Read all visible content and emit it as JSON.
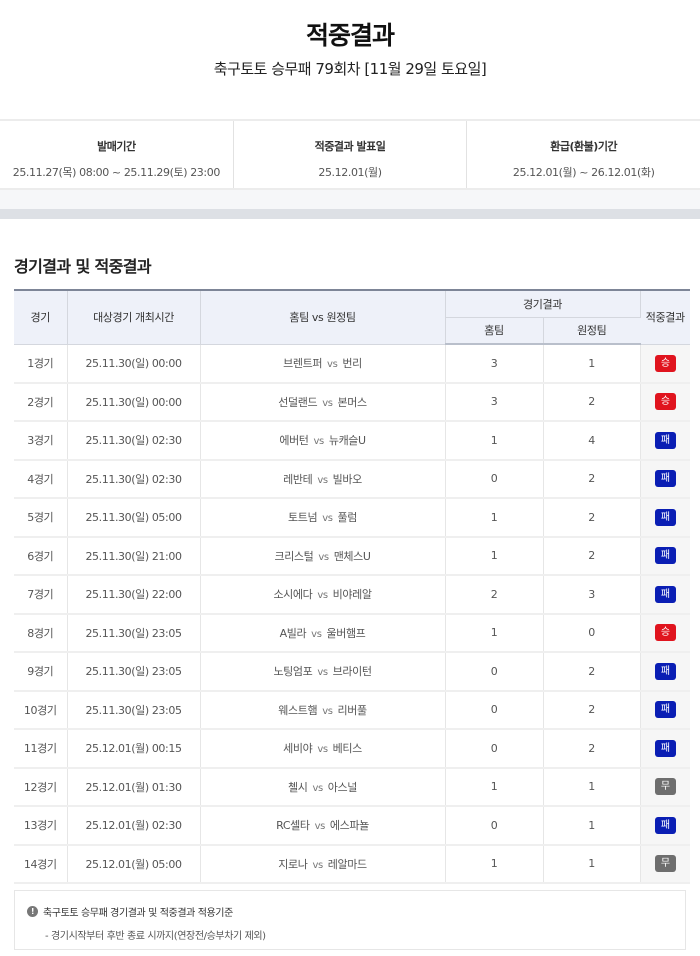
{
  "header": {
    "title": "적중결과",
    "subtitle": "축구토토 승무패 79회차 [11월 29일 토요일]"
  },
  "info": [
    {
      "label": "발매기간",
      "value": "25.11.27(목) 08:00 ~ 25.11.29(토) 23:00"
    },
    {
      "label": "적중결과 발표일",
      "value": "25.12.01(월)"
    },
    {
      "label": "환급(환불)기간",
      "value": "25.12.01(월) ~ 26.12.01(화)"
    }
  ],
  "section_title": "경기결과 및 적중결과",
  "table": {
    "headers": {
      "game": "경기",
      "time": "대상경기 개최시간",
      "teams": "홈팀 vs 원정팀",
      "result_group": "경기결과",
      "home": "홈팀",
      "away": "원정팀",
      "outcome": "적중결과"
    },
    "vs": "vs",
    "rows": [
      {
        "game": "1경기",
        "time": "25.11.30(일) 00:00",
        "home": "브렌트퍼",
        "away": "번리",
        "hs": "3",
        "as": "1",
        "outcome": "승"
      },
      {
        "game": "2경기",
        "time": "25.11.30(일) 00:00",
        "home": "선덜랜드",
        "away": "본머스",
        "hs": "3",
        "as": "2",
        "outcome": "승"
      },
      {
        "game": "3경기",
        "time": "25.11.30(일) 02:30",
        "home": "에버턴",
        "away": "뉴캐슬U",
        "hs": "1",
        "as": "4",
        "outcome": "패"
      },
      {
        "game": "4경기",
        "time": "25.11.30(일) 02:30",
        "home": "레반테",
        "away": "빌바오",
        "hs": "0",
        "as": "2",
        "outcome": "패"
      },
      {
        "game": "5경기",
        "time": "25.11.30(일) 05:00",
        "home": "토트넘",
        "away": "풀럼",
        "hs": "1",
        "as": "2",
        "outcome": "패"
      },
      {
        "game": "6경기",
        "time": "25.11.30(일) 21:00",
        "home": "크리스털",
        "away": "맨체스U",
        "hs": "1",
        "as": "2",
        "outcome": "패"
      },
      {
        "game": "7경기",
        "time": "25.11.30(일) 22:00",
        "home": "소시에다",
        "away": "비야레알",
        "hs": "2",
        "as": "3",
        "outcome": "패"
      },
      {
        "game": "8경기",
        "time": "25.11.30(일) 23:05",
        "home": "A빌라",
        "away": "울버햄프",
        "hs": "1",
        "as": "0",
        "outcome": "승"
      },
      {
        "game": "9경기",
        "time": "25.11.30(일) 23:05",
        "home": "노팅엄포",
        "away": "브라이턴",
        "hs": "0",
        "as": "2",
        "outcome": "패"
      },
      {
        "game": "10경기",
        "time": "25.11.30(일) 23:05",
        "home": "웨스트햄",
        "away": "리버풀",
        "hs": "0",
        "as": "2",
        "outcome": "패"
      },
      {
        "game": "11경기",
        "time": "25.12.01(월) 00:15",
        "home": "세비야",
        "away": "베티스",
        "hs": "0",
        "as": "2",
        "outcome": "패"
      },
      {
        "game": "12경기",
        "time": "25.12.01(월) 01:30",
        "home": "첼시",
        "away": "아스널",
        "hs": "1",
        "as": "1",
        "outcome": "무"
      },
      {
        "game": "13경기",
        "time": "25.12.01(월) 02:30",
        "home": "RC셀타",
        "away": "에스파뇰",
        "hs": "0",
        "as": "1",
        "outcome": "패"
      },
      {
        "game": "14경기",
        "time": "25.12.01(월) 05:00",
        "home": "지로나",
        "away": "레알마드",
        "hs": "1",
        "as": "1",
        "outcome": "무"
      }
    ]
  },
  "outcome_colors": {
    "승": "#e0141e",
    "패": "#0a1eb4",
    "무": "#6e6e6e"
  },
  "note": {
    "icon": "exclamation-circle-icon",
    "title": "축구토토 승무패 경기결과 및 적중결과 적용기준",
    "body": "- 경기시작부터 후반 종료 시까지(연장전/승부차기 제외)"
  }
}
